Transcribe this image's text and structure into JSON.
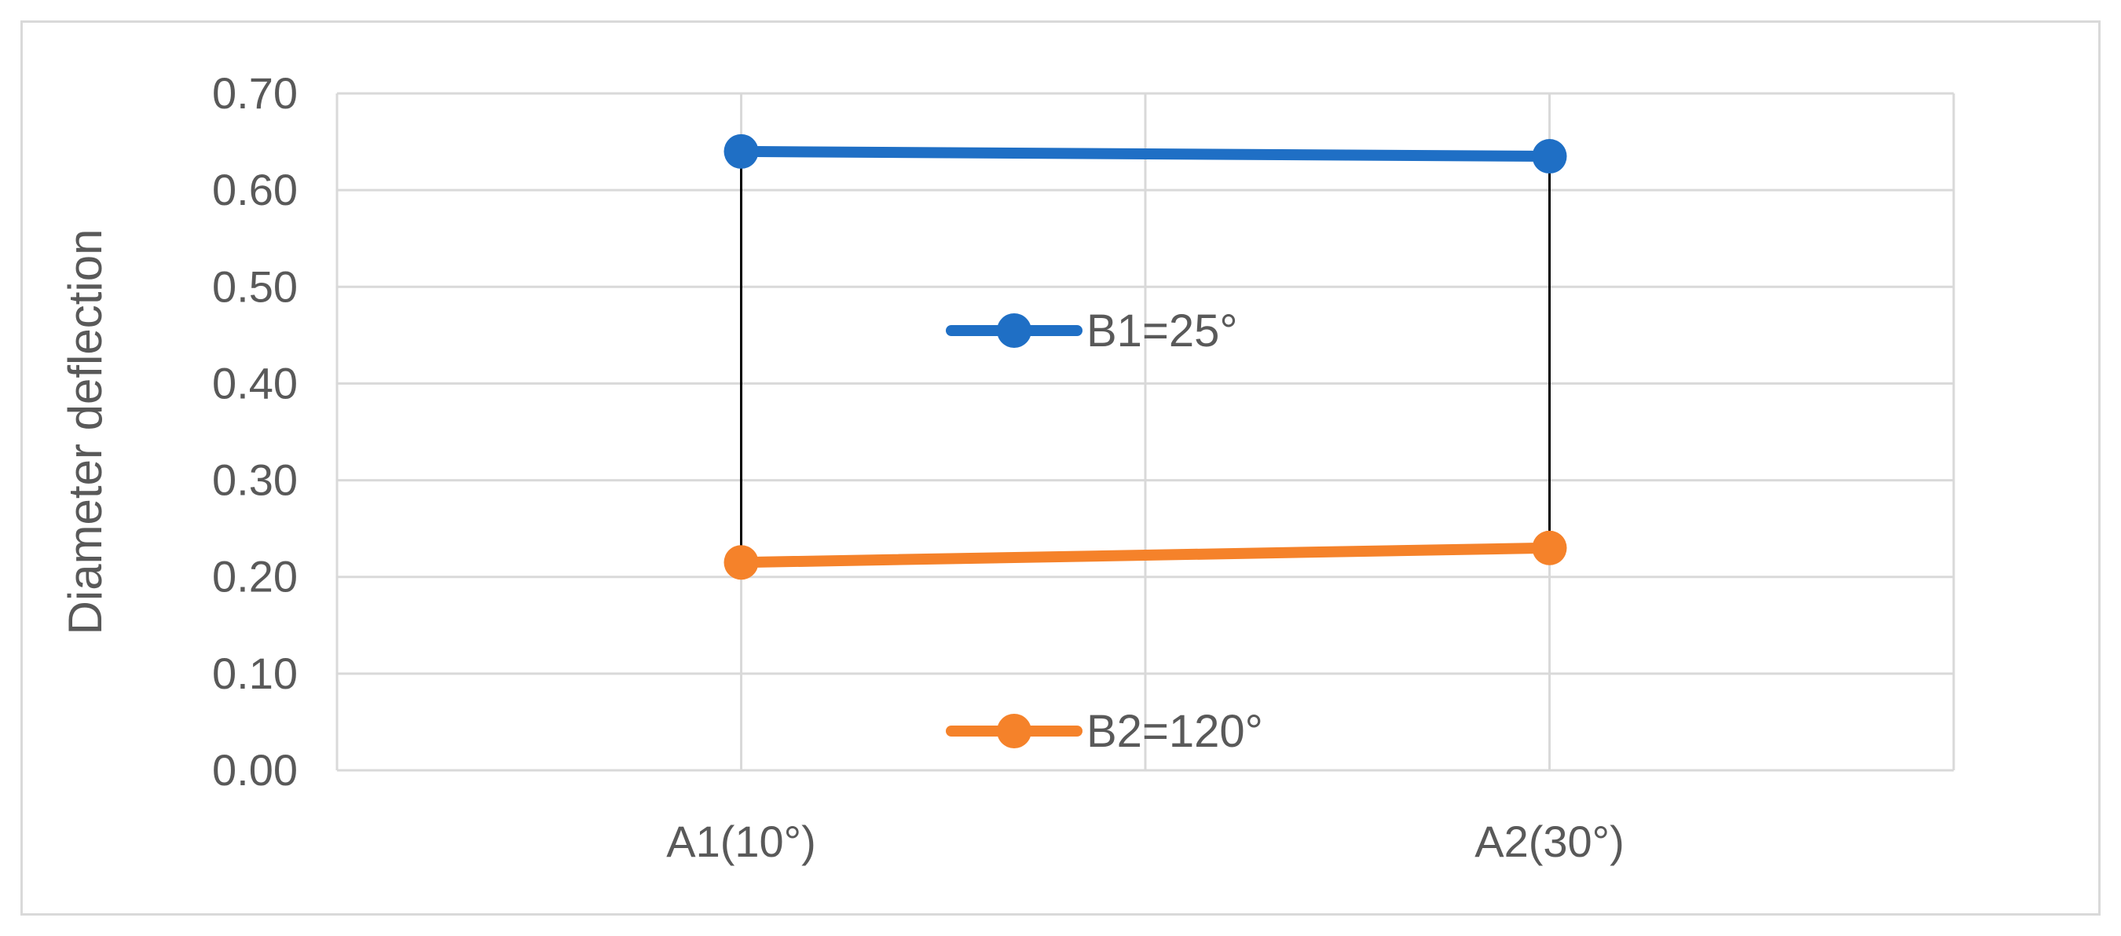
{
  "chart_data": {
    "type": "line",
    "title": "",
    "xlabel": "",
    "ylabel": "Diameter deflection",
    "categories": [
      "A1(10°)",
      "A2(30°)"
    ],
    "ylim": [
      0,
      0.7
    ],
    "yticks": [
      "0.00",
      "0.10",
      "0.20",
      "0.30",
      "0.40",
      "0.50",
      "0.60",
      "0.70"
    ],
    "grid": true,
    "legend_placement": "inside-center",
    "series": [
      {
        "name": "B1=25°",
        "values": [
          0.64,
          0.635
        ],
        "color": "#1f6fc5"
      },
      {
        "name": "B2=120°",
        "values": [
          0.215,
          0.23
        ],
        "color": "#f5822a"
      }
    ],
    "drop_lines": true,
    "drop_line_color": "#000000"
  }
}
